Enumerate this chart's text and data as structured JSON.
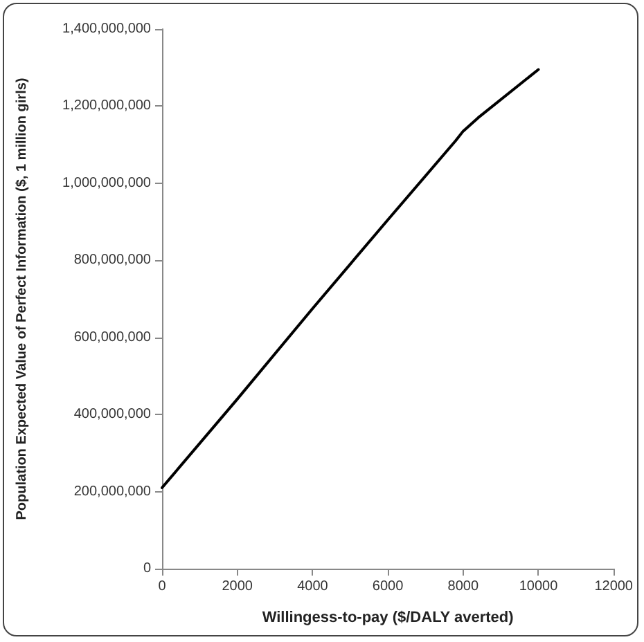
{
  "chart_data": {
    "type": "line",
    "xlabel": "Willingess-to-pay ($/DALY averted)",
    "ylabel": "Population Expected Value of Perfect Information ($, 1 million girls)",
    "x": [
      0,
      2000,
      4000,
      6000,
      7800,
      8000,
      8400,
      10000
    ],
    "series": [
      {
        "color": "#000000",
        "values": [
          210000000,
          440000000,
          675000000,
          905000000,
          1110000000,
          1135000000,
          1170000000,
          1295000000
        ]
      }
    ],
    "xlim": [
      0,
      12000
    ],
    "xticks": [
      0,
      2000,
      4000,
      6000,
      8000,
      10000,
      12000
    ],
    "ylim": [
      0,
      1400000000
    ],
    "yticks": [
      0,
      {
        "value": 200000000,
        "label": "200,000,000"
      },
      {
        "value": 400000000,
        "label": "400,000,000"
      },
      {
        "value": 600000000,
        "label": "600,000,000"
      },
      {
        "value": 800000000,
        "label": "800,000,000"
      },
      {
        "value": 1000000000,
        "label": "1,000,000,000"
      },
      {
        "value": 1200000000,
        "label": "1,200,000,000"
      },
      {
        "value": 1400000000,
        "label": "1,400,000,000"
      }
    ],
    "grid": false,
    "marker": "none",
    "line_style": "solid"
  }
}
